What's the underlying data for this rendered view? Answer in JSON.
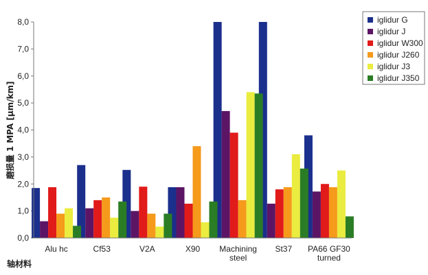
{
  "chart_data": {
    "type": "bar",
    "ylabel": "磨损量  1 MPA [μm/km]",
    "xlabel": "轴材料",
    "ylim": [
      0,
      8
    ],
    "yticks": [
      "0,0",
      "1,0",
      "2,0",
      "3,0",
      "4,0",
      "5,0",
      "6,0",
      "7,0",
      "8,0"
    ],
    "categories": [
      [
        "Alu hc"
      ],
      [
        "Cf53"
      ],
      [
        "V2A"
      ],
      [
        "X90"
      ],
      [
        "Machining",
        "steel"
      ],
      [
        "St37"
      ],
      [
        "PA66 GF30",
        "turned"
      ]
    ],
    "series": [
      {
        "name": "iglidur G",
        "color": "#1b2f8c",
        "values": [
          1.85,
          2.7,
          2.52,
          1.88,
          8.0,
          8.0,
          3.8
        ]
      },
      {
        "name": "iglidur J",
        "color": "#5c1565",
        "values": [
          0.62,
          1.1,
          1.0,
          1.88,
          4.7,
          1.27,
          1.72
        ]
      },
      {
        "name": "iglidur W300",
        "color": "#e11a1a",
        "values": [
          1.88,
          1.4,
          1.9,
          1.27,
          3.9,
          1.8,
          2.0
        ]
      },
      {
        "name": "iglidur J260",
        "color": "#f59a1b",
        "values": [
          0.9,
          1.5,
          0.9,
          3.4,
          1.4,
          1.88,
          1.88
        ]
      },
      {
        "name": "iglidur J3",
        "color": "#eaec3f",
        "values": [
          1.1,
          0.75,
          0.42,
          0.58,
          5.4,
          3.1,
          2.5
        ]
      },
      {
        "name": "iglidur J350",
        "color": "#2a7d24",
        "values": [
          0.45,
          1.35,
          0.9,
          1.35,
          5.35,
          2.57,
          0.8
        ]
      }
    ],
    "legend_position": "top-right",
    "grid": false
  }
}
